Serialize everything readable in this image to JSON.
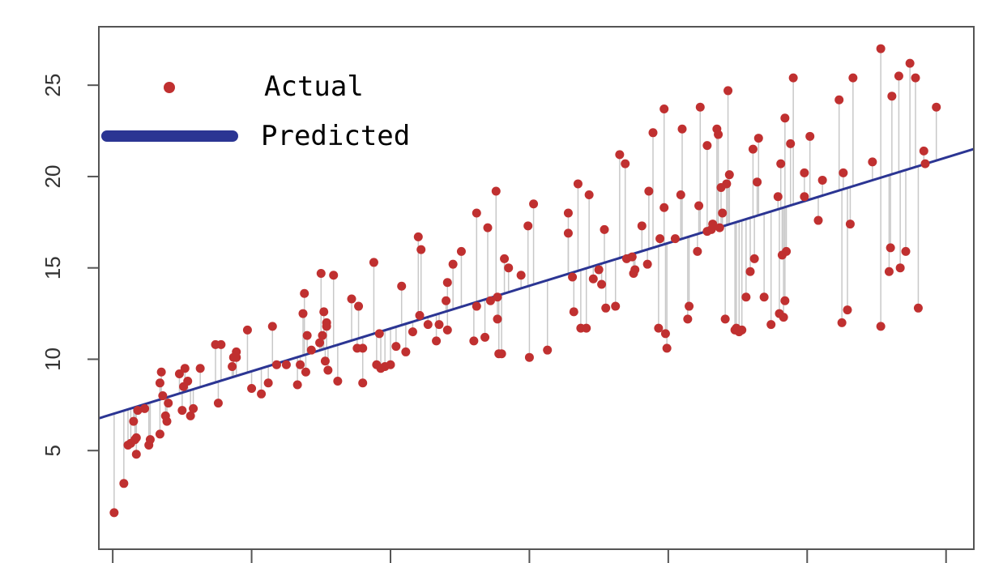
{
  "chart_data": {
    "type": "scatter",
    "title": "",
    "xlabel": "",
    "ylabel": "",
    "xlim": [
      -0.1,
      6.2
    ],
    "ylim": [
      -0.4,
      28.2
    ],
    "y_ticks": [
      "5",
      "10",
      "15",
      "20",
      "25"
    ],
    "x_tick_values": [
      0,
      1,
      2,
      3,
      4,
      5,
      6
    ],
    "grid": false,
    "legend_position": "top-left",
    "colors": {
      "actual": "#c03030",
      "predicted": "#2b3593",
      "residual": "#c8c8c8"
    },
    "predicted_line": {
      "intercept": 7.0,
      "slope": 2.34
    },
    "series": [
      {
        "name": "Actual",
        "points": [
          [
            0.01,
            1.6
          ],
          [
            0.08,
            3.2
          ],
          [
            0.11,
            5.3
          ],
          [
            0.13,
            5.4
          ],
          [
            0.15,
            6.6
          ],
          [
            0.16,
            5.6
          ],
          [
            0.17,
            5.7
          ],
          [
            0.17,
            4.8
          ],
          [
            0.18,
            7.2
          ],
          [
            0.23,
            7.3
          ],
          [
            0.26,
            5.3
          ],
          [
            0.27,
            5.6
          ],
          [
            0.34,
            5.9
          ],
          [
            0.34,
            8.7
          ],
          [
            0.35,
            9.3
          ],
          [
            0.36,
            8.0
          ],
          [
            0.38,
            6.9
          ],
          [
            0.39,
            6.6
          ],
          [
            0.4,
            7.6
          ],
          [
            0.48,
            9.2
          ],
          [
            0.5,
            7.2
          ],
          [
            0.51,
            8.5
          ],
          [
            0.52,
            9.5
          ],
          [
            0.54,
            8.8
          ],
          [
            0.56,
            6.9
          ],
          [
            0.58,
            7.3
          ],
          [
            0.63,
            9.5
          ],
          [
            0.74,
            10.8
          ],
          [
            0.76,
            7.6
          ],
          [
            0.78,
            10.8
          ],
          [
            0.86,
            9.6
          ],
          [
            0.87,
            10.1
          ],
          [
            0.89,
            10.4
          ],
          [
            0.89,
            10.1
          ],
          [
            0.97,
            11.6
          ],
          [
            1.0,
            8.4
          ],
          [
            1.07,
            8.1
          ],
          [
            1.12,
            8.7
          ],
          [
            1.15,
            11.8
          ],
          [
            1.18,
            9.7
          ],
          [
            1.25,
            9.7
          ],
          [
            1.33,
            8.6
          ],
          [
            1.35,
            9.7
          ],
          [
            1.37,
            12.5
          ],
          [
            1.38,
            13.6
          ],
          [
            1.39,
            9.3
          ],
          [
            1.4,
            11.3
          ],
          [
            1.43,
            10.5
          ],
          [
            1.49,
            10.9
          ],
          [
            1.5,
            14.7
          ],
          [
            1.51,
            11.3
          ],
          [
            1.52,
            12.6
          ],
          [
            1.53,
            9.9
          ],
          [
            1.54,
            12.0
          ],
          [
            1.54,
            11.8
          ],
          [
            1.55,
            9.4
          ],
          [
            1.59,
            14.6
          ],
          [
            1.62,
            8.8
          ],
          [
            1.72,
            13.3
          ],
          [
            1.76,
            10.6
          ],
          [
            1.77,
            12.9
          ],
          [
            1.8,
            8.7
          ],
          [
            1.8,
            10.6
          ],
          [
            1.88,
            15.3
          ],
          [
            1.9,
            9.7
          ],
          [
            1.92,
            11.4
          ],
          [
            1.93,
            9.5
          ],
          [
            1.96,
            9.6
          ],
          [
            2.0,
            9.7
          ],
          [
            2.04,
            10.7
          ],
          [
            2.08,
            14.0
          ],
          [
            2.11,
            10.4
          ],
          [
            2.16,
            11.5
          ],
          [
            2.2,
            16.7
          ],
          [
            2.21,
            12.4
          ],
          [
            2.22,
            16.0
          ],
          [
            2.27,
            11.9
          ],
          [
            2.33,
            11.0
          ],
          [
            2.35,
            11.9
          ],
          [
            2.4,
            13.2
          ],
          [
            2.41,
            14.2
          ],
          [
            2.41,
            11.6
          ],
          [
            2.45,
            15.2
          ],
          [
            2.51,
            15.9
          ],
          [
            2.6,
            11.0
          ],
          [
            2.62,
            18.0
          ],
          [
            2.62,
            12.9
          ],
          [
            2.68,
            11.2
          ],
          [
            2.7,
            17.2
          ],
          [
            2.72,
            13.2
          ],
          [
            2.76,
            19.2
          ],
          [
            2.77,
            13.4
          ],
          [
            2.77,
            12.2
          ],
          [
            2.78,
            10.3
          ],
          [
            2.8,
            10.3
          ],
          [
            2.82,
            15.5
          ],
          [
            2.85,
            15.0
          ],
          [
            2.94,
            14.6
          ],
          [
            2.99,
            17.3
          ],
          [
            3.0,
            10.1
          ],
          [
            3.03,
            18.5
          ],
          [
            3.13,
            10.5
          ],
          [
            3.28,
            18.0
          ],
          [
            3.28,
            16.9
          ],
          [
            3.31,
            14.5
          ],
          [
            3.32,
            12.6
          ],
          [
            3.35,
            19.6
          ],
          [
            3.37,
            11.7
          ],
          [
            3.41,
            11.7
          ],
          [
            3.43,
            19.0
          ],
          [
            3.46,
            14.4
          ],
          [
            3.5,
            14.9
          ],
          [
            3.52,
            14.1
          ],
          [
            3.54,
            17.1
          ],
          [
            3.55,
            12.8
          ],
          [
            3.62,
            12.9
          ],
          [
            3.65,
            21.2
          ],
          [
            3.69,
            20.7
          ],
          [
            3.7,
            15.5
          ],
          [
            3.74,
            15.6
          ],
          [
            3.75,
            14.7
          ],
          [
            3.76,
            14.9
          ],
          [
            3.81,
            17.3
          ],
          [
            3.85,
            15.2
          ],
          [
            3.86,
            19.2
          ],
          [
            3.89,
            22.4
          ],
          [
            3.93,
            11.7
          ],
          [
            3.94,
            16.6
          ],
          [
            3.97,
            23.7
          ],
          [
            3.97,
            18.3
          ],
          [
            3.98,
            11.4
          ],
          [
            3.99,
            10.6
          ],
          [
            4.05,
            16.6
          ],
          [
            4.09,
            19.0
          ],
          [
            4.1,
            22.6
          ],
          [
            4.14,
            12.2
          ],
          [
            4.15,
            12.9
          ],
          [
            4.21,
            15.9
          ],
          [
            4.22,
            18.4
          ],
          [
            4.23,
            23.8
          ],
          [
            4.28,
            21.7
          ],
          [
            4.28,
            17.0
          ],
          [
            4.31,
            17.1
          ],
          [
            4.32,
            17.4
          ],
          [
            4.35,
            22.6
          ],
          [
            4.36,
            22.3
          ],
          [
            4.37,
            17.2
          ],
          [
            4.38,
            19.4
          ],
          [
            4.39,
            18.0
          ],
          [
            4.41,
            12.2
          ],
          [
            4.42,
            19.6
          ],
          [
            4.43,
            24.7
          ],
          [
            4.44,
            20.1
          ],
          [
            4.48,
            11.6
          ],
          [
            4.49,
            11.7
          ],
          [
            4.51,
            11.5
          ],
          [
            4.53,
            11.6
          ],
          [
            4.56,
            13.4
          ],
          [
            4.59,
            14.8
          ],
          [
            4.61,
            21.5
          ],
          [
            4.62,
            15.5
          ],
          [
            4.64,
            19.7
          ],
          [
            4.65,
            22.1
          ],
          [
            4.69,
            13.4
          ],
          [
            4.74,
            11.9
          ],
          [
            4.79,
            18.9
          ],
          [
            4.8,
            12.5
          ],
          [
            4.81,
            20.7
          ],
          [
            4.82,
            15.7
          ],
          [
            4.83,
            12.3
          ],
          [
            4.84,
            23.2
          ],
          [
            4.84,
            13.2
          ],
          [
            4.85,
            15.9
          ],
          [
            4.88,
            21.8
          ],
          [
            4.9,
            25.4
          ],
          [
            4.98,
            20.2
          ],
          [
            4.98,
            18.9
          ],
          [
            5.02,
            22.2
          ],
          [
            5.08,
            17.6
          ],
          [
            5.11,
            19.8
          ],
          [
            5.23,
            24.2
          ],
          [
            5.25,
            12.0
          ],
          [
            5.26,
            20.2
          ],
          [
            5.29,
            12.7
          ],
          [
            5.31,
            17.4
          ],
          [
            5.33,
            25.4
          ],
          [
            5.47,
            20.8
          ],
          [
            5.53,
            27.0
          ],
          [
            5.53,
            11.8
          ],
          [
            5.59,
            14.8
          ],
          [
            5.6,
            16.1
          ],
          [
            5.61,
            24.4
          ],
          [
            5.66,
            25.5
          ],
          [
            5.67,
            15.0
          ],
          [
            5.71,
            15.9
          ],
          [
            5.74,
            26.2
          ],
          [
            5.78,
            25.4
          ],
          [
            5.8,
            12.8
          ],
          [
            5.84,
            21.4
          ],
          [
            5.85,
            20.7
          ],
          [
            5.93,
            23.8
          ]
        ]
      },
      {
        "name": "Predicted"
      }
    ]
  }
}
